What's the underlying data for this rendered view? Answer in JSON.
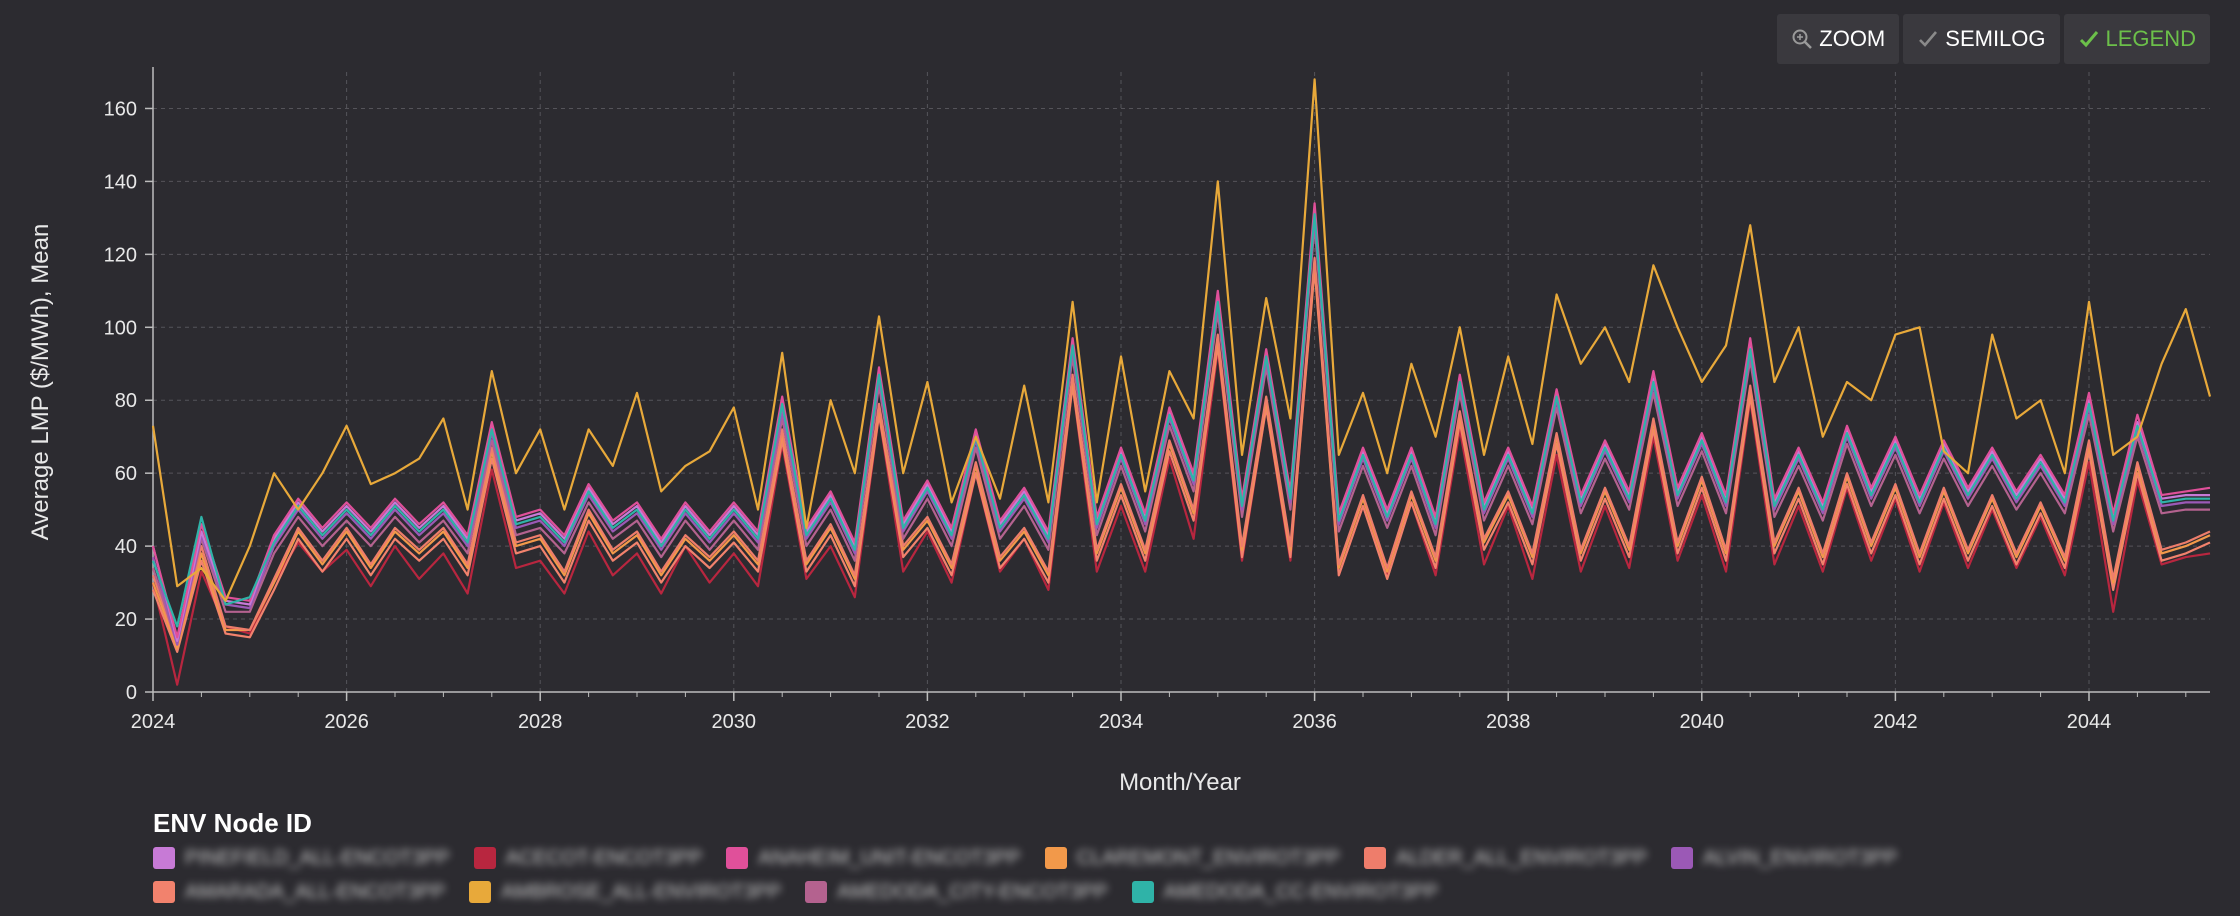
{
  "toolbar": {
    "zoom_label": "ZOOM",
    "semilog_label": "SEMILOG",
    "legend_label": "LEGEND"
  },
  "colors": {
    "background": "#2c2b30",
    "grid": "#55545a",
    "axis": "#bdbdbd",
    "active_toggle": "#6cc04a"
  },
  "legend": {
    "title": "ENV Node ID",
    "items": [
      {
        "label": "PINEFIELD_ALL-ENCOT3PP",
        "color": "#c77ad6"
      },
      {
        "label": "ACECOT-ENCOT3PP",
        "color": "#b8263f"
      },
      {
        "label": "ANAHEIM_UNIT-ENCOT3PP",
        "color": "#e0509a"
      },
      {
        "label": "CLAREMONT_ENVIROT3PP",
        "color": "#f2994a"
      },
      {
        "label": "ALDER_ALL_ENVIROT3PP",
        "color": "#ee7d6b"
      },
      {
        "label": "ALVIN_ENVIROT3PP",
        "color": "#9b59b6"
      },
      {
        "label": "AMARADA_ALL-ENCOT3PP",
        "color": "#f2826d"
      },
      {
        "label": "AMBROSE_ALL-ENVIROT3PP",
        "color": "#e8a93a"
      },
      {
        "label": "AMEDODA_CITY-ENCOT3PP",
        "color": "#b4628f"
      },
      {
        "label": "AMEDODA_CC-ENVIROT3PP",
        "color": "#2fb3a8"
      }
    ]
  },
  "chart_data": {
    "type": "line",
    "xlabel": "Month/Year",
    "ylabel": "Average LMP ($/MWh), Mean",
    "xlim": [
      2024.0,
      2045.25
    ],
    "ylim": [
      0,
      170
    ],
    "x_ticks": [
      "2024",
      "2026",
      "2028",
      "2030",
      "2032",
      "2034",
      "2036",
      "2038",
      "2040",
      "2042",
      "2044"
    ],
    "y_ticks": [
      "0",
      "20",
      "40",
      "60",
      "80",
      "100",
      "120",
      "140",
      "160"
    ],
    "grid": true,
    "legend_position": "bottom",
    "x": [
      2024.0,
      2024.25,
      2024.5,
      2024.75,
      2025.0,
      2025.25,
      2025.5,
      2025.75,
      2026.0,
      2026.25,
      2026.5,
      2026.75,
      2027.0,
      2027.25,
      2027.5,
      2027.75,
      2028.0,
      2028.25,
      2028.5,
      2028.75,
      2029.0,
      2029.25,
      2029.5,
      2029.75,
      2030.0,
      2030.25,
      2030.5,
      2030.75,
      2031.0,
      2031.25,
      2031.5,
      2031.75,
      2032.0,
      2032.25,
      2032.5,
      2032.75,
      2033.0,
      2033.25,
      2033.5,
      2033.75,
      2034.0,
      2034.25,
      2034.5,
      2034.75,
      2035.0,
      2035.25,
      2035.5,
      2035.75,
      2036.0,
      2036.25,
      2036.5,
      2036.75,
      2037.0,
      2037.25,
      2037.5,
      2037.75,
      2038.0,
      2038.25,
      2038.5,
      2038.75,
      2039.0,
      2039.25,
      2039.5,
      2039.75,
      2040.0,
      2040.25,
      2040.5,
      2040.75,
      2041.0,
      2041.25,
      2041.5,
      2041.75,
      2042.0,
      2042.25,
      2042.5,
      2042.75,
      2043.0,
      2043.25,
      2043.5,
      2043.75,
      2044.0,
      2044.25,
      2044.5,
      2044.75,
      2045.0,
      2045.25
    ],
    "series": [
      {
        "name": "PINEFIELD_ALL-ENCOT3PP",
        "values": [
          40,
          14,
          44,
          25,
          24,
          42,
          52,
          44,
          51,
          44,
          52,
          45,
          51,
          42,
          73,
          47,
          49,
          42,
          56,
          46,
          51,
          41,
          51,
          43,
          51,
          43,
          79,
          44,
          54,
          40,
          88,
          46,
          57,
          44,
          71,
          46,
          55,
          43,
          96,
          47,
          66,
          48,
          77,
          59,
          108,
          52,
          93,
          54,
          132,
          48,
          66,
          49,
          66,
          47,
          86,
          51,
          66,
          50,
          82,
          53,
          68,
          54,
          86,
          55,
          70,
          53,
          95,
          52,
          66,
          51,
          72,
          55,
          69,
          53,
          68,
          55,
          66,
          54,
          64,
          53,
          80,
          48,
          74,
          53,
          54,
          54
        ]
      },
      {
        "name": "ACECOT-ENCOT3PP",
        "values": [
          30,
          2,
          33,
          18,
          16,
          30,
          41,
          33,
          39,
          29,
          40,
          31,
          38,
          27,
          61,
          34,
          36,
          27,
          44,
          32,
          38,
          27,
          40,
          30,
          38,
          29,
          68,
          31,
          40,
          26,
          76,
          33,
          44,
          30,
          60,
          33,
          42,
          28,
          84,
          33,
          51,
          33,
          64,
          42,
          94,
          36,
          78,
          36,
          117,
          32,
          51,
          32,
          52,
          32,
          72,
          35,
          51,
          31,
          65,
          33,
          51,
          34,
          70,
          36,
          54,
          33,
          80,
          35,
          51,
          33,
          56,
          36,
          53,
          33,
          52,
          34,
          50,
          34,
          48,
          32,
          63,
          22,
          58,
          35,
          37,
          38
        ]
      },
      {
        "name": "ANAHEIM_UNIT-ENCOT3PP",
        "values": [
          40,
          15,
          46,
          26,
          25,
          43,
          53,
          45,
          52,
          45,
          53,
          46,
          52,
          43,
          74,
          48,
          50,
          43,
          57,
          47,
          52,
          42,
          52,
          44,
          52,
          44,
          81,
          45,
          55,
          41,
          89,
          47,
          58,
          45,
          72,
          47,
          56,
          44,
          97,
          48,
          67,
          49,
          78,
          60,
          110,
          53,
          94,
          55,
          134,
          49,
          67,
          50,
          67,
          48,
          87,
          52,
          67,
          51,
          83,
          54,
          69,
          55,
          88,
          56,
          71,
          54,
          97,
          53,
          67,
          52,
          73,
          56,
          70,
          54,
          69,
          56,
          67,
          55,
          65,
          54,
          82,
          49,
          76,
          54,
          55,
          56
        ]
      },
      {
        "name": "CLAREMONT_ENVIROT3PP",
        "values": [
          30,
          12,
          38,
          17,
          17,
          30,
          44,
          35,
          44,
          34,
          44,
          38,
          44,
          34,
          66,
          40,
          42,
          32,
          49,
          38,
          43,
          32,
          42,
          36,
          43,
          35,
          71,
          35,
          45,
          31,
          78,
          39,
          47,
          34,
          62,
          36,
          44,
          32,
          86,
          38,
          56,
          38,
          68,
          49,
          97,
          39,
          80,
          39,
          118,
          34,
          53,
          33,
          54,
          36,
          76,
          41,
          54,
          37,
          70,
          38,
          55,
          39,
          74,
          40,
          58,
          38,
          83,
          40,
          55,
          37,
          59,
          40,
          56,
          37,
          55,
          38,
          53,
          37,
          51,
          36,
          68,
          30,
          62,
          38,
          40,
          43
        ]
      },
      {
        "name": "ALDER_ALL_ENVIROT3PP",
        "values": [
          32,
          13,
          40,
          18,
          17,
          31,
          45,
          36,
          45,
          35,
          45,
          39,
          45,
          35,
          67,
          41,
          43,
          33,
          50,
          39,
          44,
          33,
          43,
          37,
          44,
          36,
          72,
          36,
          46,
          32,
          79,
          40,
          48,
          35,
          63,
          37,
          45,
          33,
          87,
          39,
          57,
          39,
          69,
          50,
          98,
          40,
          81,
          40,
          119,
          35,
          54,
          34,
          55,
          37,
          77,
          42,
          55,
          38,
          71,
          39,
          56,
          40,
          75,
          41,
          59,
          39,
          84,
          41,
          56,
          38,
          60,
          41,
          57,
          38,
          56,
          39,
          54,
          38,
          52,
          37,
          69,
          31,
          63,
          39,
          41,
          44
        ]
      },
      {
        "name": "ALVIN_ENVIROT3PP",
        "values": [
          37,
          13,
          43,
          24,
          23,
          40,
          50,
          42,
          49,
          42,
          50,
          43,
          49,
          40,
          71,
          45,
          47,
          40,
          54,
          44,
          49,
          39,
          49,
          41,
          49,
          41,
          77,
          42,
          52,
          38,
          86,
          44,
          55,
          42,
          69,
          44,
          53,
          41,
          94,
          45,
          64,
          46,
          75,
          57,
          106,
          50,
          91,
          52,
          130,
          46,
          64,
          47,
          64,
          45,
          84,
          49,
          64,
          48,
          80,
          51,
          66,
          52,
          84,
          53,
          68,
          51,
          93,
          50,
          64,
          49,
          70,
          53,
          67,
          51,
          66,
          53,
          64,
          52,
          62,
          51,
          78,
          46,
          72,
          51,
          52,
          52
        ]
      },
      {
        "name": "AMARADA_ALL-ENCOT3PP",
        "values": [
          28,
          11,
          36,
          16,
          15,
          28,
          42,
          33,
          42,
          32,
          42,
          36,
          42,
          32,
          64,
          38,
          40,
          30,
          47,
          36,
          41,
          30,
          40,
          34,
          41,
          33,
          69,
          33,
          43,
          29,
          76,
          37,
          45,
          32,
          60,
          34,
          42,
          30,
          84,
          36,
          54,
          36,
          66,
          47,
          95,
          37,
          78,
          37,
          116,
          32,
          51,
          31,
          52,
          34,
          74,
          39,
          52,
          35,
          68,
          36,
          53,
          37,
          72,
          38,
          56,
          36,
          81,
          38,
          53,
          35,
          57,
          38,
          54,
          35,
          53,
          36,
          51,
          35,
          49,
          34,
          66,
          28,
          60,
          36,
          38,
          41
        ]
      },
      {
        "name": "AMBROSE_ALL-ENVIROT3PP",
        "values": [
          73,
          29,
          34,
          25,
          40,
          60,
          50,
          60,
          73,
          57,
          60,
          64,
          75,
          50,
          88,
          60,
          72,
          50,
          72,
          62,
          82,
          55,
          62,
          66,
          78,
          50,
          93,
          45,
          80,
          60,
          103,
          60,
          85,
          52,
          70,
          53,
          84,
          52,
          107,
          52,
          92,
          55,
          88,
          75,
          140,
          65,
          108,
          75,
          168,
          65,
          82,
          60,
          90,
          70,
          100,
          65,
          92,
          68,
          109,
          90,
          100,
          85,
          117,
          100,
          85,
          95,
          128,
          85,
          100,
          70,
          85,
          80,
          98,
          100,
          66,
          60,
          98,
          75,
          80,
          60,
          107,
          65,
          70,
          90,
          105,
          81
        ]
      },
      {
        "name": "AMEDODA_CITY-ENCOT3PP",
        "values": [
          34,
          13,
          42,
          22,
          22,
          38,
          48,
          40,
          47,
          40,
          48,
          41,
          47,
          38,
          69,
          43,
          45,
          38,
          52,
          42,
          47,
          37,
          47,
          39,
          47,
          39,
          75,
          40,
          50,
          36,
          84,
          42,
          53,
          40,
          67,
          42,
          51,
          39,
          92,
          43,
          62,
          44,
          73,
          55,
          104,
          48,
          89,
          50,
          128,
          44,
          62,
          45,
          62,
          43,
          82,
          47,
          62,
          46,
          78,
          49,
          64,
          50,
          82,
          51,
          66,
          49,
          91,
          48,
          62,
          47,
          68,
          51,
          65,
          49,
          64,
          51,
          62,
          50,
          60,
          49,
          76,
          44,
          70,
          49,
          50,
          50
        ]
      },
      {
        "name": "AMEDODA_CC-ENVIROT3PP",
        "values": [
          36,
          18,
          48,
          24,
          26,
          41,
          51,
          43,
          50,
          43,
          51,
          44,
          50,
          41,
          72,
          46,
          48,
          41,
          55,
          45,
          50,
          40,
          50,
          42,
          50,
          42,
          79,
          43,
          53,
          39,
          87,
          45,
          56,
          43,
          70,
          45,
          54,
          42,
          95,
          46,
          65,
          47,
          76,
          58,
          107,
          51,
          92,
          53,
          131,
          47,
          65,
          48,
          65,
          46,
          85,
          50,
          65,
          49,
          81,
          52,
          67,
          53,
          85,
          54,
          69,
          52,
          94,
          51,
          65,
          50,
          71,
          54,
          68,
          52,
          67,
          54,
          65,
          53,
          63,
          52,
          79,
          47,
          73,
          52,
          53,
          53
        ]
      }
    ]
  }
}
